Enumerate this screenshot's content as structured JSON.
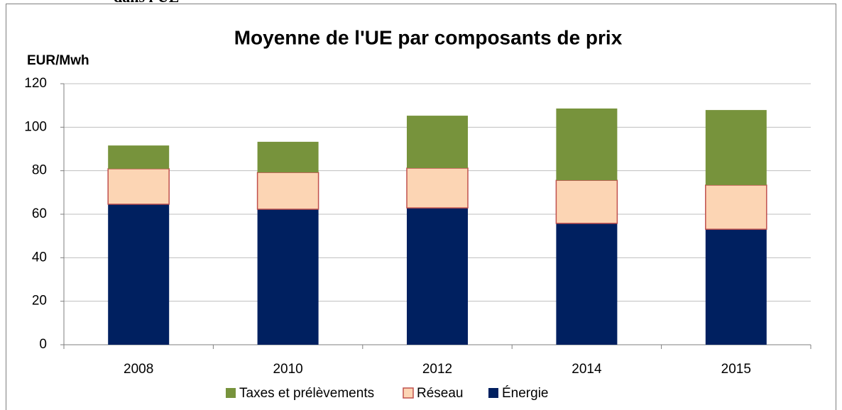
{
  "chart_data": {
    "type": "stacked_bar",
    "annotation": "dans l'UE",
    "title": "Moyenne de l'UE par composants de prix",
    "y_label": "EUR/Mwh",
    "categories": [
      "2008",
      "2010",
      "2012",
      "2014",
      "2015"
    ],
    "series": [
      {
        "name": "Taxes et prélèvements",
        "color": "#77933c",
        "values": [
          10.7,
          14.1,
          24.1,
          33.0,
          34.5
        ]
      },
      {
        "name": "Réseau",
        "color": "#fcd5b4",
        "values": [
          16.3,
          16.9,
          18.3,
          19.8,
          20.3
        ]
      },
      {
        "name": "Énergie",
        "color": "#002060",
        "values": [
          64.6,
          62.3,
          62.9,
          55.8,
          53.1
        ]
      }
    ],
    "ylim": [
      0,
      120
    ],
    "yticks": [
      0,
      20,
      40,
      60,
      80,
      100,
      120
    ],
    "grid": true,
    "legend": "bottom"
  }
}
